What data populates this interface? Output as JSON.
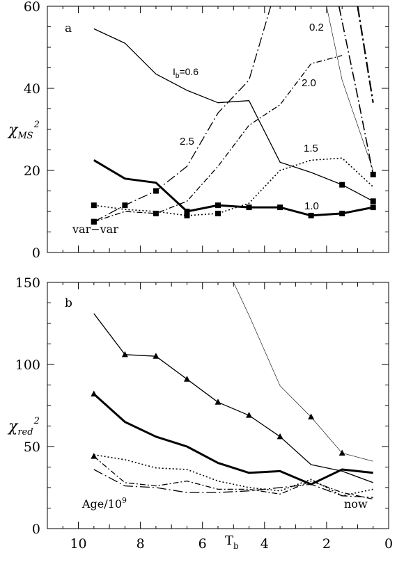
{
  "chart_data": [
    {
      "type": "line",
      "panel_label": "a",
      "ylabel": "χ",
      "ylabel_sub": "MS",
      "ylabel_sup": "2",
      "xlim": [
        11,
        0
      ],
      "ylim": [
        0,
        60
      ],
      "yticks": [
        0,
        20,
        40,
        60
      ],
      "xticks": [
        10,
        8,
        6,
        4,
        2,
        0
      ],
      "annotations": {
        "ib": "I",
        "ib_sub": "b",
        "ib_val": "=0.6",
        "l02": "0.2",
        "l20": "2.0",
        "l25": "2.5",
        "l15": "1.5",
        "l10": "1.0",
        "varvar": "var−var"
      },
      "series": [
        {
          "style": "solid-thin",
          "x": [
            9.5,
            8.5,
            7.5,
            6.5,
            5.5,
            4.5,
            3.5,
            2.5,
            1.5,
            0.5
          ],
          "y": [
            54.5,
            51,
            43.5,
            39.5,
            36.5,
            37,
            22,
            19.5,
            16.5,
            12.5
          ],
          "markers": [
            false,
            false,
            false,
            false,
            false,
            false,
            false,
            false,
            true,
            true
          ]
        },
        {
          "style": "solid-thick",
          "x": [
            9.5,
            8.5,
            7.5,
            6.5,
            5.5,
            4.5,
            3.5,
            2.5,
            1.5,
            0.5
          ],
          "y": [
            22.5,
            18,
            17,
            10,
            11.5,
            11,
            11,
            9,
            9.5,
            11
          ],
          "markers": [
            false,
            false,
            false,
            true,
            true,
            true,
            true,
            true,
            true,
            true
          ]
        },
        {
          "style": "dashdot-long",
          "x": [
            9.5,
            8.5,
            7.5,
            6.5,
            5.5,
            4.5,
            3.8
          ],
          "y": [
            7.5,
            11.5,
            15,
            21,
            34,
            42,
            60
          ],
          "markers": [
            true,
            true,
            true,
            false,
            false,
            false,
            false
          ]
        },
        {
          "style": "dashdot",
          "x": [
            9.5,
            8.5,
            7.5,
            6.5,
            5.5,
            4.5,
            3.5,
            2.5,
            1.5
          ],
          "y": [
            7.5,
            10,
            9.5,
            12.5,
            21,
            31,
            36,
            46,
            48
          ],
          "markers": [
            true,
            false,
            true,
            false,
            false,
            false,
            false,
            false,
            false
          ]
        },
        {
          "style": "dotted",
          "x": [
            9.5,
            8.5,
            7.5,
            6.5,
            5.5,
            4.5,
            3.5,
            2.5,
            1.5,
            0.5
          ],
          "y": [
            11.5,
            10.5,
            10,
            9,
            9.5,
            12,
            20,
            22.5,
            23,
            16
          ],
          "markers": [
            true,
            false,
            false,
            true,
            true,
            false,
            false,
            false,
            false,
            false
          ]
        },
        {
          "style": "solid-hair",
          "x": [
            2.0,
            1.5,
            0.5
          ],
          "y": [
            60,
            42,
            20
          ],
          "markers": [
            false,
            false,
            false
          ]
        },
        {
          "style": "dashdot-steep",
          "x": [
            1.0,
            0.5
          ],
          "y": [
            60,
            36.5
          ],
          "markers": [
            false,
            false
          ]
        },
        {
          "style": "dashdot-long-steep",
          "x": [
            1.6,
            1.0,
            0.5
          ],
          "y": [
            60,
            38,
            19
          ],
          "markers": [
            false,
            false,
            true
          ]
        }
      ]
    },
    {
      "type": "line",
      "panel_label": "b",
      "ylabel": "χ",
      "ylabel_sub": "red",
      "ylabel_sup": "2",
      "xlabel": "T",
      "xlabel_sub": "b",
      "xlim": [
        11,
        0
      ],
      "ylim": [
        0,
        150
      ],
      "yticks": [
        0,
        50,
        100,
        150
      ],
      "xticks": [
        10,
        8,
        6,
        4,
        2,
        0
      ],
      "annotations": {
        "age": "Age/10",
        "age_sup": "9",
        "now": "now"
      },
      "series": [
        {
          "style": "solid-thin",
          "x": [
            9.5,
            8.5,
            7.5,
            6.5,
            5.5,
            4.5,
            3.5,
            2.5,
            1.5,
            0.5
          ],
          "y": [
            131,
            106,
            105,
            91,
            77,
            69,
            56,
            39,
            35,
            28
          ],
          "markers": [
            false,
            true,
            true,
            true,
            true,
            true,
            true,
            false,
            false,
            false
          ]
        },
        {
          "style": "solid-thick",
          "x": [
            9.5,
            8.5,
            7.5,
            6.5,
            5.5,
            4.5,
            3.5,
            2.5,
            1.5,
            0.5
          ],
          "y": [
            82,
            65,
            56,
            50,
            40,
            34,
            35,
            27,
            36,
            34
          ],
          "markers": [
            true,
            false,
            false,
            false,
            false,
            false,
            false,
            false,
            false,
            false
          ]
        },
        {
          "style": "dotted",
          "x": [
            9.5,
            8.5,
            7.5,
            6.5,
            5.5,
            4.5,
            3.5,
            2.5,
            1.5,
            0.5
          ],
          "y": [
            45,
            42,
            37,
            36,
            29,
            25,
            23,
            30,
            20,
            24
          ],
          "markers": [
            false,
            false,
            false,
            false,
            false,
            false,
            false,
            false,
            false,
            false
          ]
        },
        {
          "style": "dashdot",
          "x": [
            9.5,
            8.5,
            7.5,
            6.5,
            5.5,
            4.5,
            3.5,
            2.5,
            1.5,
            0.5
          ],
          "y": [
            44,
            28,
            26,
            29,
            24,
            24,
            21,
            29,
            22,
            18
          ],
          "markers": [
            true,
            false,
            false,
            false,
            false,
            false,
            false,
            false,
            false,
            false
          ]
        },
        {
          "style": "dashdot-long",
          "x": [
            9.5,
            8.5,
            7.5,
            6.5,
            5.5,
            4.5,
            3.5,
            2.5,
            1.5,
            0.5
          ],
          "y": [
            36,
            26,
            25,
            22,
            22,
            23,
            25,
            27,
            20,
            19
          ],
          "markers": [
            false,
            false,
            false,
            false,
            false,
            false,
            false,
            false,
            false,
            false
          ]
        },
        {
          "style": "solid-hair",
          "x": [
            5.0,
            4.5,
            3.5,
            2.5,
            1.5,
            0.5
          ],
          "y": [
            150,
            130,
            87,
            68,
            46,
            41
          ],
          "markers": [
            false,
            false,
            false,
            true,
            true,
            false
          ]
        }
      ]
    }
  ]
}
